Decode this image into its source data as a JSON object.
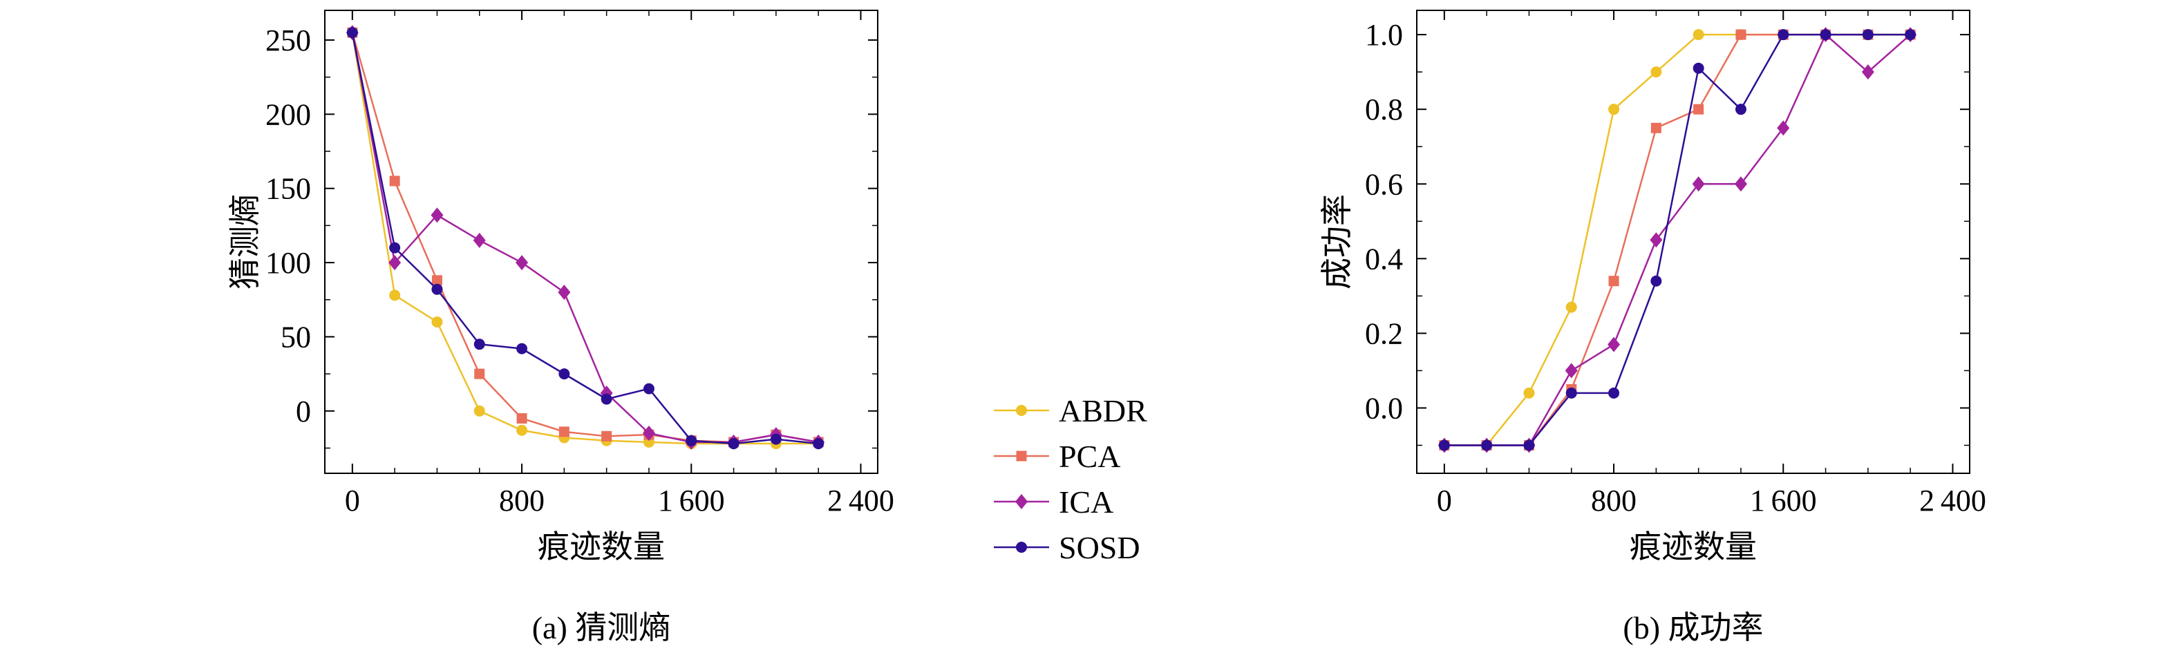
{
  "figure": {
    "background": "#ffffff",
    "frame_color": "#000000"
  },
  "chart_data": [
    {
      "type": "line",
      "title": "",
      "caption": "(a) 猜测熵",
      "xlabel": "痕迹数量",
      "ylabel": "猜测熵",
      "grid": false,
      "legend_position": "outside-right-between-charts",
      "x": [
        0,
        200,
        400,
        600,
        800,
        1000,
        1200,
        1400,
        1600,
        1800,
        2000,
        2200
      ],
      "xlim": [
        -130,
        2480
      ],
      "ylim": [
        -42,
        270
      ],
      "xticks": [
        0,
        800,
        1600,
        2400
      ],
      "xtick_labels": [
        "0",
        "800",
        "1 600",
        "2 400"
      ],
      "x_minor_step": 200,
      "yticks": [
        0,
        50,
        100,
        150,
        200,
        250
      ],
      "ytick_labels": [
        "0",
        "50",
        "100",
        "150",
        "200",
        "250"
      ],
      "y_minor_step": 25,
      "series": [
        {
          "name": "ABDR",
          "color": "#eec127",
          "marker": "circle",
          "values": [
            255,
            78,
            60,
            0,
            -13,
            -18,
            -20,
            -21,
            -22,
            -22,
            -22,
            -22
          ]
        },
        {
          "name": "PCA",
          "color": "#e96f5a",
          "marker": "square",
          "values": [
            255,
            155,
            88,
            25,
            -5,
            -14,
            -17,
            -16,
            -20,
            -21,
            -16,
            -21
          ]
        },
        {
          "name": "ICA",
          "color": "#a3239e",
          "marker": "diamond",
          "values": [
            255,
            100,
            132,
            115,
            100,
            80,
            12,
            -15,
            -21,
            -21,
            -16,
            -21
          ]
        },
        {
          "name": "SOSD",
          "color": "#2d0f94",
          "marker": "circle",
          "values": [
            255,
            110,
            82,
            45,
            42,
            25,
            8,
            15,
            -20,
            -22,
            -19,
            -22
          ]
        }
      ]
    },
    {
      "type": "line",
      "title": "",
      "caption": "(b) 成功率",
      "xlabel": "痕迹数量",
      "ylabel": "成功率",
      "grid": false,
      "x": [
        0,
        200,
        400,
        600,
        800,
        1000,
        1200,
        1400,
        1600,
        1800,
        2000,
        2200
      ],
      "xlim": [
        -130,
        2480
      ],
      "ylim": [
        -0.175,
        1.065
      ],
      "xticks": [
        0,
        800,
        1600,
        2400
      ],
      "xtick_labels": [
        "0",
        "800",
        "1 600",
        "2 400"
      ],
      "x_minor_step": 200,
      "yticks": [
        0,
        0.2,
        0.4,
        0.6,
        0.8,
        1.0
      ],
      "ytick_labels": [
        "0.0",
        "0.2",
        "0.4",
        "0.6",
        "0.8",
        "1.0"
      ],
      "y_minor_step": 0.1,
      "series": [
        {
          "name": "ABDR",
          "color": "#eec127",
          "marker": "circle",
          "values": [
            -0.1,
            -0.1,
            0.04,
            0.27,
            0.8,
            0.9,
            1.0,
            1.0,
            1.0,
            1.0,
            1.0,
            1.0
          ]
        },
        {
          "name": "PCA",
          "color": "#e96f5a",
          "marker": "square",
          "values": [
            -0.1,
            -0.1,
            -0.1,
            0.05,
            0.34,
            0.75,
            0.8,
            1.0,
            1.0,
            1.0,
            1.0,
            1.0
          ]
        },
        {
          "name": "ICA",
          "color": "#a3239e",
          "marker": "diamond",
          "values": [
            -0.1,
            -0.1,
            -0.1,
            0.1,
            0.17,
            0.45,
            0.6,
            0.6,
            0.75,
            1.0,
            0.9,
            1.0
          ]
        },
        {
          "name": "SOSD",
          "color": "#2d0f94",
          "marker": "circle",
          "values": [
            -0.1,
            -0.1,
            -0.1,
            0.04,
            0.04,
            0.34,
            0.91,
            0.8,
            1.0,
            1.0,
            1.0,
            1.0
          ]
        }
      ]
    }
  ]
}
